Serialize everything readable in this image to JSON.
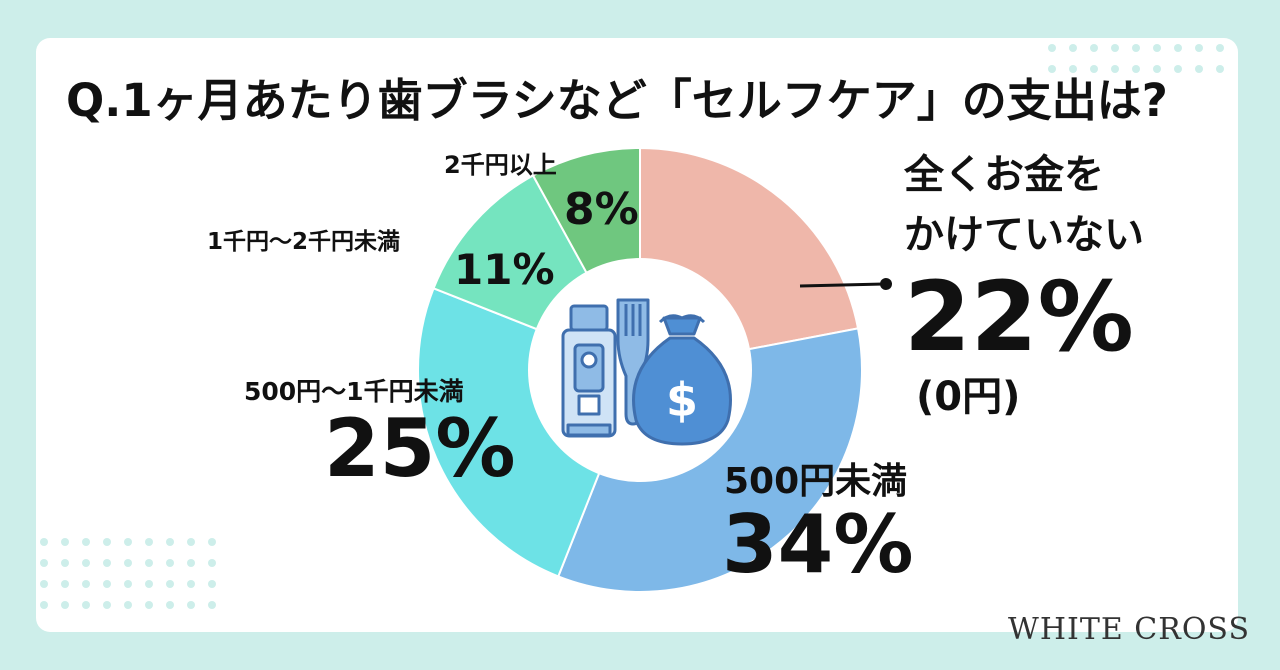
{
  "title": "Q.1ヶ月あたり歯ブラシなど「セルフケア」の支出は?",
  "brand": "WHITE CROSS",
  "chart_data": {
    "type": "pie",
    "style": "donut",
    "slices": [
      {
        "label_lines": [
          "全くお金を",
          "かけていない"
        ],
        "sublabel": "(0円)",
        "value": 22,
        "value_label": "22%",
        "color": "#efb7aa"
      },
      {
        "label_lines": [
          "500円未満"
        ],
        "value": 34,
        "value_label": "34%",
        "color": "#7eb8e8"
      },
      {
        "label_lines": [
          "500円〜1千円未満"
        ],
        "value": 25,
        "value_label": "25%",
        "color": "#6de2e6"
      },
      {
        "label_lines": [
          "1千円〜2千円未満"
        ],
        "value": 11,
        "value_label": "11%",
        "color": "#75e4bf"
      },
      {
        "label_lines": [
          "2千円以上"
        ],
        "value": 8,
        "value_label": "8%",
        "color": "#6fc77f"
      }
    ],
    "center_icons": [
      "toothpaste-icon",
      "toothbrush-icon",
      "money-bag-icon"
    ],
    "icon_color": "#4f8fd4"
  }
}
